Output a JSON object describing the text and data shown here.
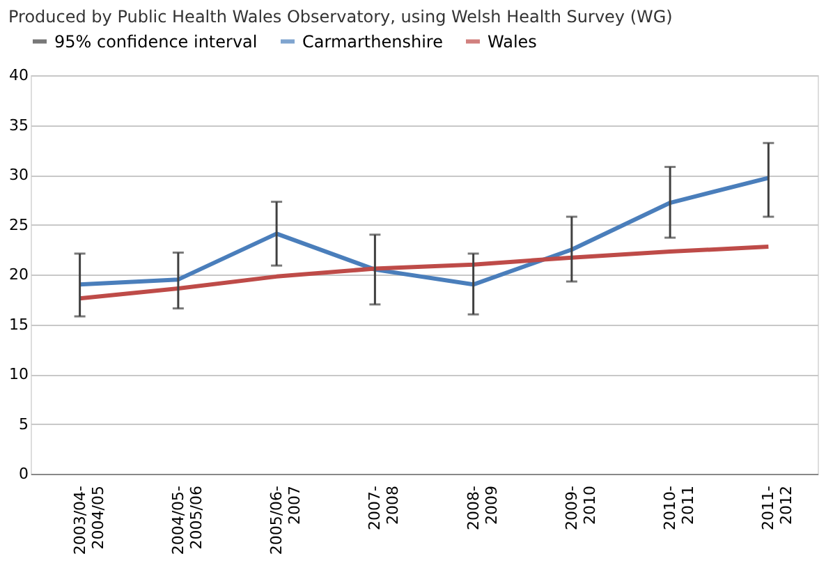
{
  "chart_data": {
    "type": "line",
    "annotations": [
      "Produced by Public Health Wales Observatory, using Welsh Health Survey (WG)",
      "95% confidence interval"
    ],
    "categories": [
      "2003/04-2004/05",
      "2004/05-2005/06",
      "2005/06-2007",
      "2007-2008",
      "2008-2009",
      "2009-2010",
      "2010-2011",
      "2011-2012"
    ],
    "series": [
      {
        "name": "Carmarthenshire",
        "color": "#4a7ebb",
        "values": [
          19.0,
          19.5,
          24.1,
          20.5,
          19.0,
          22.5,
          27.2,
          29.7
        ],
        "errors": [
          [
            15.8,
            22.1
          ],
          [
            16.6,
            22.2
          ],
          [
            20.9,
            27.3
          ],
          [
            17.0,
            24.0
          ],
          [
            16.0,
            22.1
          ],
          [
            19.3,
            25.8
          ],
          [
            23.7,
            30.8
          ],
          [
            25.8,
            33.2
          ]
        ]
      },
      {
        "name": "Wales",
        "color": "#be4b48",
        "values": [
          17.6,
          18.6,
          19.8,
          20.6,
          21.0,
          21.7,
          22.3,
          22.8
        ]
      }
    ],
    "ylim": [
      0,
      40
    ],
    "yticks": [
      0,
      5,
      10,
      15,
      20,
      25,
      30,
      35,
      40
    ],
    "grid": "y",
    "legend": "top right",
    "marker": "none",
    "line_style": "solid"
  }
}
